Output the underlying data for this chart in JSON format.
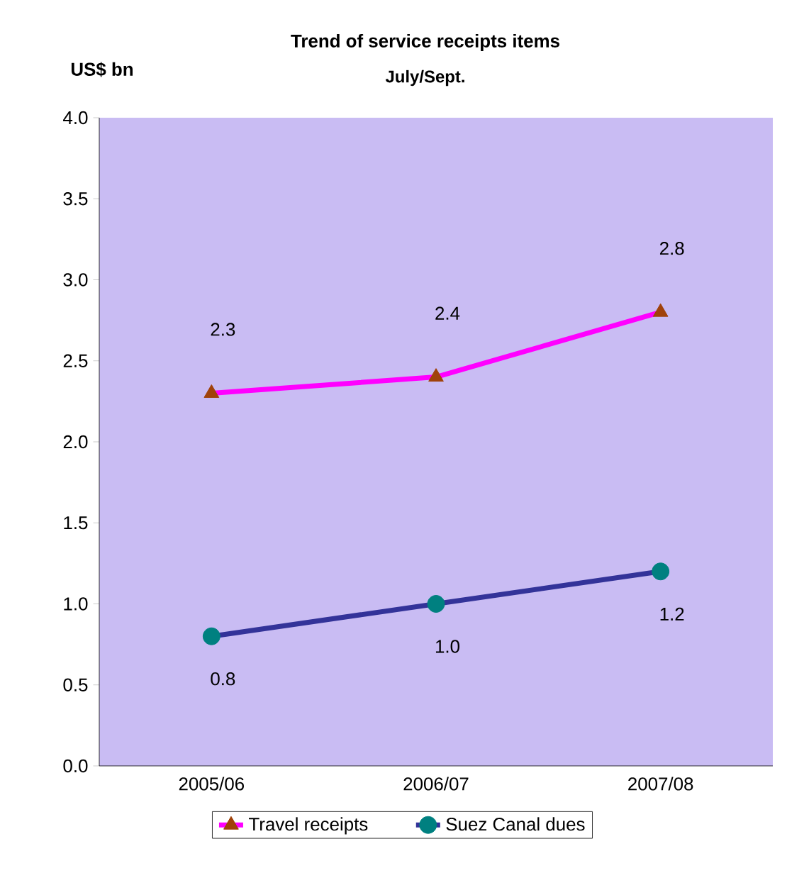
{
  "chart_data": {
    "type": "line",
    "title": "Trend of service receipts items",
    "subtitle": "July/Sept.",
    "ylabel": "US$ bn",
    "categories": [
      "2005/06",
      "2006/07",
      "2007/08"
    ],
    "series": [
      {
        "name": "Travel receipts",
        "color": "#ff00ff",
        "marker": "triangle",
        "values": [
          2.3,
          2.4,
          2.8
        ],
        "value_labels": [
          "2.3",
          "2.4",
          "2.8"
        ]
      },
      {
        "name": "Suez Canal dues",
        "color": "#333399",
        "marker": "circle",
        "values": [
          0.8,
          1.0,
          1.2
        ],
        "value_labels": [
          "0.8",
          "1.0",
          "1.2"
        ]
      }
    ],
    "ylim": [
      0,
      4
    ],
    "yticks": [
      {
        "value": 0,
        "label": "0.0"
      },
      0.5,
      {
        "value": 1,
        "label": "1.0"
      },
      1.5,
      {
        "value": 2,
        "label": "2.0"
      },
      2.5,
      {
        "value": 3,
        "label": "3.0"
      },
      3.5,
      {
        "value": 4,
        "label": "4.0"
      }
    ],
    "legend": "bottom",
    "grid": false
  }
}
